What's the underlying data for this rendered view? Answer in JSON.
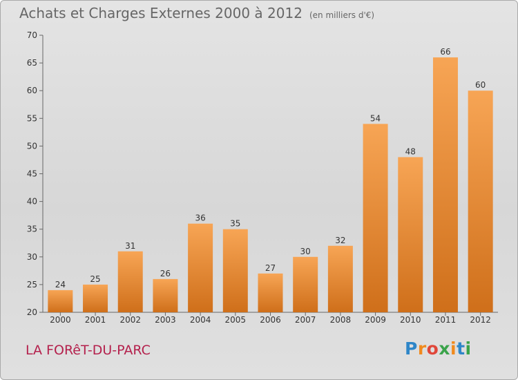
{
  "title": "Achats et Charges Externes 2000 à 2012",
  "unit": "(en milliers d'€)",
  "commune": "LA FORêT-DU-PARC",
  "logo": {
    "letters": [
      {
        "ch": "P",
        "color": "#2e86c8"
      },
      {
        "ch": "r",
        "color": "#f08a1e"
      },
      {
        "ch": "o",
        "color": "#e0473a"
      },
      {
        "ch": "x",
        "color": "#3aa34a"
      },
      {
        "ch": "i",
        "color": "#f08a1e"
      },
      {
        "ch": "t",
        "color": "#2e86c8"
      },
      {
        "ch": "i",
        "color": "#3aa34a"
      }
    ]
  },
  "chart_data": {
    "type": "bar",
    "categories": [
      "2000",
      "2001",
      "2002",
      "2003",
      "2004",
      "2005",
      "2006",
      "2007",
      "2008",
      "2009",
      "2010",
      "2011",
      "2012"
    ],
    "values": [
      24,
      25,
      31,
      26,
      36,
      35,
      27,
      30,
      32,
      54,
      48,
      66,
      60
    ],
    "ylim": [
      20,
      70
    ],
    "yticks": [
      20,
      25,
      30,
      35,
      40,
      45,
      50,
      55,
      60,
      65,
      70
    ],
    "grid": false,
    "colors": {
      "bar_top": "#f7a555",
      "bar_bottom": "#cf6f1a",
      "axis": "#666666",
      "text": "#333333"
    }
  }
}
